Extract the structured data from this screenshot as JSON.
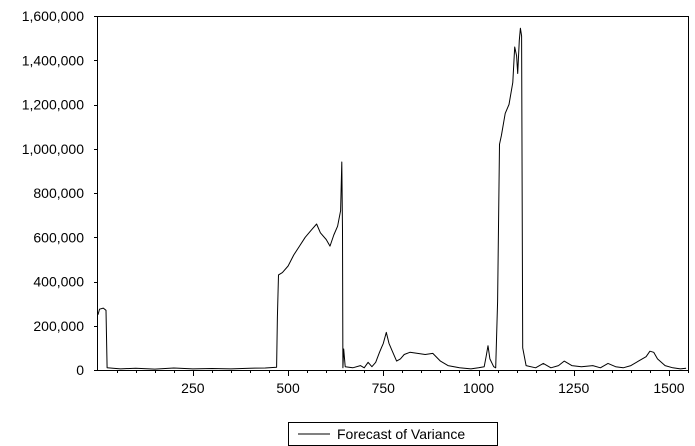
{
  "chart_data": {
    "type": "line",
    "title": "",
    "xlabel": "",
    "ylabel": "",
    "xlim": [
      1,
      1550
    ],
    "ylim": [
      0,
      1600000
    ],
    "x_ticks": [
      250,
      500,
      750,
      1000,
      1250,
      1500
    ],
    "x_tick_labels": [
      "250",
      "500",
      "750",
      "1000",
      "1250",
      "1500"
    ],
    "y_ticks": [
      0,
      200000,
      400000,
      600000,
      800000,
      1000000,
      1200000,
      1400000,
      1600000
    ],
    "y_tick_labels": [
      "0",
      "200,000",
      "400,000",
      "600,000",
      "800,000",
      "1,000,000",
      "1,200,000",
      "1,400,000",
      "1,600,000"
    ],
    "grid": false,
    "legend_position": "bottom-center",
    "series": [
      {
        "name": "Forecast of Variance",
        "color": "#000000",
        "points": [
          [
            1,
            250000
          ],
          [
            5,
            275000
          ],
          [
            15,
            280000
          ],
          [
            22,
            270000
          ],
          [
            25,
            10000
          ],
          [
            60,
            5000
          ],
          [
            100,
            8000
          ],
          [
            150,
            4000
          ],
          [
            200,
            9000
          ],
          [
            250,
            5000
          ],
          [
            300,
            7000
          ],
          [
            350,
            5000
          ],
          [
            400,
            8000
          ],
          [
            440,
            9000
          ],
          [
            470,
            12000
          ],
          [
            472,
            240000
          ],
          [
            475,
            430000
          ],
          [
            485,
            440000
          ],
          [
            500,
            470000
          ],
          [
            515,
            520000
          ],
          [
            530,
            560000
          ],
          [
            545,
            600000
          ],
          [
            560,
            630000
          ],
          [
            575,
            660000
          ],
          [
            585,
            620000
          ],
          [
            600,
            590000
          ],
          [
            610,
            560000
          ],
          [
            620,
            610000
          ],
          [
            630,
            650000
          ],
          [
            638,
            720000
          ],
          [
            641,
            940000
          ],
          [
            643,
            630000
          ],
          [
            644,
            10000
          ],
          [
            646,
            95000
          ],
          [
            650,
            15000
          ],
          [
            670,
            10000
          ],
          [
            690,
            20000
          ],
          [
            700,
            10000
          ],
          [
            710,
            35000
          ],
          [
            720,
            15000
          ],
          [
            730,
            35000
          ],
          [
            740,
            80000
          ],
          [
            750,
            120000
          ],
          [
            758,
            170000
          ],
          [
            765,
            120000
          ],
          [
            775,
            80000
          ],
          [
            785,
            40000
          ],
          [
            795,
            50000
          ],
          [
            805,
            70000
          ],
          [
            820,
            80000
          ],
          [
            840,
            75000
          ],
          [
            860,
            70000
          ],
          [
            880,
            75000
          ],
          [
            900,
            40000
          ],
          [
            920,
            20000
          ],
          [
            950,
            10000
          ],
          [
            980,
            5000
          ],
          [
            1000,
            10000
          ],
          [
            1015,
            15000
          ],
          [
            1020,
            60000
          ],
          [
            1025,
            110000
          ],
          [
            1030,
            50000
          ],
          [
            1040,
            15000
          ],
          [
            1045,
            10000
          ],
          [
            1050,
            310000
          ],
          [
            1055,
            1020000
          ],
          [
            1060,
            1060000
          ],
          [
            1070,
            1160000
          ],
          [
            1080,
            1200000
          ],
          [
            1090,
            1300000
          ],
          [
            1095,
            1460000
          ],
          [
            1100,
            1420000
          ],
          [
            1103,
            1340000
          ],
          [
            1107,
            1490000
          ],
          [
            1110,
            1545000
          ],
          [
            1113,
            1510000
          ],
          [
            1116,
            100000
          ],
          [
            1125,
            20000
          ],
          [
            1150,
            10000
          ],
          [
            1170,
            30000
          ],
          [
            1190,
            10000
          ],
          [
            1210,
            20000
          ],
          [
            1225,
            40000
          ],
          [
            1245,
            20000
          ],
          [
            1270,
            15000
          ],
          [
            1300,
            20000
          ],
          [
            1320,
            10000
          ],
          [
            1340,
            30000
          ],
          [
            1360,
            15000
          ],
          [
            1380,
            10000
          ],
          [
            1400,
            20000
          ],
          [
            1420,
            40000
          ],
          [
            1440,
            60000
          ],
          [
            1450,
            85000
          ],
          [
            1460,
            80000
          ],
          [
            1470,
            50000
          ],
          [
            1490,
            20000
          ],
          [
            1510,
            10000
          ],
          [
            1530,
            5000
          ],
          [
            1545,
            8000
          ]
        ]
      }
    ]
  }
}
